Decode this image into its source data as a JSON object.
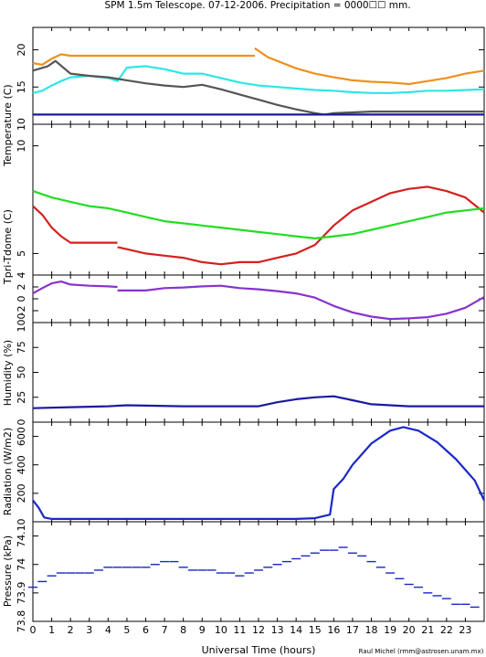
{
  "title": "SPM 1.5m Telescope. 07-12-2006. Precipitation = 0000☐☐ mm.",
  "xlabel": "Universal Time (hours)",
  "credit": "Raul Michel (rmm@astrosen.unam.mx)",
  "x_ticks": [
    "0",
    "1",
    "2",
    "3",
    "4",
    "5",
    "6",
    "7",
    "8",
    "9",
    "10",
    "11",
    "12",
    "13",
    "14",
    "15",
    "16",
    "17",
    "18",
    "19",
    "20",
    "21",
    "22",
    "23"
  ],
  "colors": {
    "orange": "#f0901c",
    "cyan": "#2ee6e6",
    "gray": "#555555",
    "navy": "#1a1aa0",
    "red": "#d42020",
    "green": "#22dd22",
    "purple": "#8833cc",
    "blue": "#1a28c8"
  },
  "chart_data": [
    {
      "type": "line",
      "name": "temperature-top",
      "ylabel": "Temperature (C)",
      "xlim": [
        0,
        24
      ],
      "ylim": [
        10,
        23
      ],
      "yticks": [
        "10",
        "15",
        "20"
      ],
      "series": [
        {
          "color_key": "orange",
          "x": [
            0,
            0.5,
            1,
            1.5,
            2,
            3,
            4,
            5,
            6,
            7,
            8,
            9,
            10,
            11,
            11.8
          ],
          "y": [
            18.2,
            18,
            18.8,
            19.4,
            19.2,
            19.2,
            19.2,
            19.2,
            19.2,
            19.2,
            19.2,
            19.2,
            19.2,
            19.2,
            19.2
          ]
        },
        {
          "color_key": "orange",
          "x": [
            11.8,
            12.5,
            13,
            14,
            15,
            16,
            17,
            18,
            19,
            20,
            21,
            22,
            23,
            24
          ],
          "y": [
            20.2,
            19,
            18.5,
            17.5,
            16.8,
            16.3,
            15.9,
            15.7,
            15.6,
            15.4,
            15.8,
            16.2,
            16.8,
            17.2
          ]
        },
        {
          "color_key": "cyan",
          "x": [
            0,
            0.5,
            1,
            1.5,
            2,
            3,
            4,
            4.5,
            5,
            6,
            7,
            8,
            9,
            10,
            11,
            12,
            13,
            14,
            15,
            16,
            17,
            18,
            19,
            20,
            21,
            22,
            23,
            24
          ],
          "y": [
            14.2,
            14.5,
            15.2,
            15.8,
            16.3,
            16.5,
            16.2,
            15.8,
            17.6,
            17.8,
            17.4,
            16.8,
            16.8,
            16.2,
            15.6,
            15.2,
            15.0,
            14.8,
            14.6,
            14.5,
            14.3,
            14.2,
            14.2,
            14.3,
            14.5,
            14.5,
            14.6,
            14.7
          ]
        },
        {
          "color_key": "gray",
          "x": [
            0,
            0.8,
            1.2,
            2,
            3,
            4,
            5,
            6,
            7,
            8,
            9,
            10,
            11,
            12,
            13,
            14,
            15,
            15.5,
            16,
            17,
            18,
            19,
            20,
            21,
            22,
            23,
            24
          ],
          "y": [
            17.2,
            17.8,
            18.5,
            16.8,
            16.5,
            16.3,
            15.9,
            15.5,
            15.2,
            15.0,
            15.3,
            14.7,
            14.0,
            13.3,
            12.6,
            12.0,
            11.5,
            11.3,
            11.5,
            11.6,
            11.7,
            11.7,
            11.7,
            11.7,
            11.7,
            11.7,
            11.7
          ]
        },
        {
          "color_key": "navy",
          "x": [
            0,
            24
          ],
          "y": [
            11.3,
            11.3
          ]
        }
      ]
    },
    {
      "type": "line",
      "name": "temperature-bottom",
      "xlim": [
        0,
        24
      ],
      "ylim": [
        4,
        11
      ],
      "yticks": [
        "4",
        "5",
        "10"
      ],
      "series": [
        {
          "color_key": "red",
          "x": [
            0,
            0.5,
            1,
            1.5,
            2,
            3,
            4,
            4.5
          ],
          "y": [
            7.2,
            6.8,
            6.2,
            5.8,
            5.5,
            5.5,
            5.5,
            5.5
          ]
        },
        {
          "color_key": "red",
          "x": [
            4.5,
            5,
            6,
            7,
            8,
            9,
            10,
            11,
            12,
            13,
            14,
            15,
            16,
            17,
            18,
            19,
            20,
            21,
            22,
            23,
            24
          ],
          "y": [
            5.3,
            5.2,
            5.0,
            4.9,
            4.8,
            4.6,
            4.5,
            4.6,
            4.6,
            4.8,
            5.0,
            5.4,
            6.3,
            7.0,
            7.4,
            7.8,
            8.0,
            8.1,
            7.9,
            7.6,
            6.9
          ]
        },
        {
          "color_key": "green",
          "x": [
            0,
            1,
            2,
            3,
            4,
            5,
            6,
            7,
            8,
            9,
            10,
            11,
            12,
            13,
            14,
            15,
            16,
            17,
            18,
            19,
            20,
            21,
            22,
            23,
            24
          ],
          "y": [
            7.9,
            7.6,
            7.4,
            7.2,
            7.1,
            6.9,
            6.7,
            6.5,
            6.4,
            6.3,
            6.2,
            6.1,
            6.0,
            5.9,
            5.8,
            5.7,
            5.8,
            5.9,
            6.1,
            6.3,
            6.5,
            6.7,
            6.9,
            7.0,
            7.1
          ]
        }
      ]
    },
    {
      "type": "line",
      "name": "tpri-tdome",
      "ylabel": "Tpri-Tdome (C)",
      "xlim": [
        0,
        24
      ],
      "ylim": [
        -4,
        4
      ],
      "yticks": [
        "-2",
        "0",
        "2"
      ],
      "series": [
        {
          "color_key": "purple",
          "x": [
            0,
            0.5,
            1,
            1.5,
            2,
            3,
            4,
            4.5
          ],
          "y": [
            0.9,
            1.8,
            2.6,
            2.9,
            2.4,
            2.2,
            2.1,
            2.0
          ]
        },
        {
          "color_key": "purple",
          "x": [
            4.5,
            5,
            6,
            7,
            8,
            9,
            10,
            11,
            12,
            13,
            14,
            15,
            16,
            17,
            18,
            19,
            20,
            21,
            22,
            23,
            24
          ],
          "y": [
            1.4,
            1.4,
            1.4,
            1.8,
            1.9,
            2.1,
            2.2,
            1.8,
            1.6,
            1.3,
            0.9,
            0.2,
            -1.2,
            -2.3,
            -3.0,
            -3.4,
            -3.3,
            -3.1,
            -2.5,
            -1.5,
            0.3
          ]
        }
      ]
    },
    {
      "type": "line",
      "name": "humidity",
      "ylabel": "Humidity (%)",
      "xlim": [
        0,
        24
      ],
      "ylim": [
        0,
        100
      ],
      "yticks": [
        "0",
        "25",
        "50",
        "75",
        "100"
      ],
      "series": [
        {
          "color_key": "navy",
          "x": [
            0,
            2,
            4,
            5,
            8,
            10,
            12,
            13,
            14,
            15,
            16,
            17,
            18,
            20,
            22,
            24
          ],
          "y": [
            14,
            15,
            16,
            17,
            16,
            16,
            16,
            20,
            23,
            25,
            26,
            22,
            18,
            16,
            16,
            16
          ]
        }
      ]
    },
    {
      "type": "line",
      "name": "radiation",
      "ylabel": "Radiation (W/m2)",
      "xlim": [
        0,
        24
      ],
      "ylim": [
        0,
        700
      ],
      "yticks": [
        "0",
        "200",
        "400",
        "600"
      ],
      "series": [
        {
          "color_key": "blue",
          "x": [
            0,
            0.3,
            0.6,
            1,
            2,
            4,
            6,
            8,
            10,
            12,
            14,
            15,
            15.8,
            16,
            16.5,
            17,
            18,
            19,
            19.7,
            20.5,
            21.5,
            22.5,
            23.5,
            24
          ],
          "y": [
            150,
            100,
            30,
            20,
            20,
            20,
            20,
            20,
            20,
            20,
            20,
            25,
            50,
            230,
            300,
            400,
            550,
            640,
            665,
            640,
            560,
            440,
            290,
            150
          ]
        }
      ]
    },
    {
      "type": "scatter",
      "name": "pressure",
      "ylabel": "Pressure (kPa)",
      "xlim": [
        0,
        24
      ],
      "ylim": [
        73.8,
        74.15
      ],
      "yticks": [
        "73.8",
        "73.9",
        "74",
        "74.1"
      ],
      "series": [
        {
          "color_key": "blue",
          "x": [
            0,
            0.5,
            1,
            1.5,
            2,
            2.5,
            3,
            3.5,
            4,
            4.5,
            5,
            5.5,
            6,
            6.5,
            7,
            7.5,
            8,
            8.5,
            9,
            9.5,
            10,
            10.5,
            11,
            11.5,
            12,
            12.5,
            13,
            13.5,
            14,
            14.5,
            15,
            15.5,
            16,
            16.5,
            17,
            17.5,
            18,
            18.5,
            19,
            19.5,
            20,
            20.5,
            21,
            21.5,
            22,
            22.5,
            23,
            23.5
          ],
          "y": [
            73.92,
            73.94,
            73.96,
            73.97,
            73.97,
            73.97,
            73.97,
            73.98,
            73.99,
            73.99,
            73.99,
            73.99,
            73.99,
            74.0,
            74.01,
            74.01,
            73.99,
            73.98,
            73.98,
            73.98,
            73.97,
            73.97,
            73.96,
            73.97,
            73.98,
            73.99,
            74.0,
            74.01,
            74.02,
            74.03,
            74.04,
            74.05,
            74.05,
            74.06,
            74.04,
            74.03,
            74.01,
            73.99,
            73.97,
            73.95,
            73.93,
            73.92,
            73.9,
            73.89,
            73.88,
            73.86,
            73.86,
            73.85
          ]
        }
      ]
    }
  ]
}
